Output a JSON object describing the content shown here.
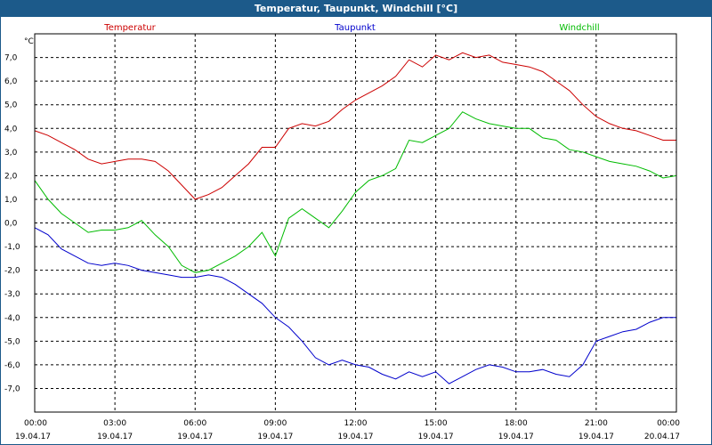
{
  "window": {
    "title": "Temperatur, Taupunkt, Windchill [°C]"
  },
  "chart_data": {
    "type": "line",
    "unit_label": "°C",
    "grid": true,
    "ylim": [
      -8,
      8
    ],
    "xlim": [
      0,
      24
    ],
    "y_ticks": [
      "7,0",
      "6,0",
      "5,0",
      "4,0",
      "3,0",
      "2,0",
      "1,0",
      "0,0",
      "-1,0",
      "-2,0",
      "-3,0",
      "-4,0",
      "-5,0",
      "-6,0",
      "-7,0"
    ],
    "y_tick_values": [
      7,
      6,
      5,
      4,
      3,
      2,
      1,
      0,
      -1,
      -2,
      -3,
      -4,
      -5,
      -6,
      -7
    ],
    "x_ticks": [
      {
        "time": "00:00",
        "date": "19.04.17"
      },
      {
        "time": "03:00",
        "date": "19.04.17"
      },
      {
        "time": "06:00",
        "date": "19.04.17"
      },
      {
        "time": "09:00",
        "date": "19.04.17"
      },
      {
        "time": "12:00",
        "date": "19.04.17"
      },
      {
        "time": "15:00",
        "date": "19.04.17"
      },
      {
        "time": "18:00",
        "date": "19.04.17"
      },
      {
        "time": "21:00",
        "date": "19.04.17"
      },
      {
        "time": "00:00",
        "date": "20.04.17"
      }
    ],
    "series": [
      {
        "name": "Temperatur",
        "color": "#cc0000",
        "points": [
          [
            0,
            3.9
          ],
          [
            0.5,
            3.7
          ],
          [
            1,
            3.4
          ],
          [
            1.5,
            3.1
          ],
          [
            2,
            2.7
          ],
          [
            2.5,
            2.5
          ],
          [
            3,
            2.6
          ],
          [
            3.5,
            2.7
          ],
          [
            4,
            2.7
          ],
          [
            4.5,
            2.6
          ],
          [
            5,
            2.2
          ],
          [
            5.5,
            1.6
          ],
          [
            6,
            1.0
          ],
          [
            6.5,
            1.2
          ],
          [
            7,
            1.5
          ],
          [
            7.5,
            2.0
          ],
          [
            8,
            2.5
          ],
          [
            8.5,
            3.2
          ],
          [
            9,
            3.2
          ],
          [
            9.5,
            4.0
          ],
          [
            10,
            4.2
          ],
          [
            10.5,
            4.1
          ],
          [
            11,
            4.3
          ],
          [
            11.5,
            4.8
          ],
          [
            12,
            5.2
          ],
          [
            12.5,
            5.5
          ],
          [
            13,
            5.8
          ],
          [
            13.5,
            6.2
          ],
          [
            14,
            6.9
          ],
          [
            14.5,
            6.6
          ],
          [
            15,
            7.1
          ],
          [
            15.5,
            6.9
          ],
          [
            16,
            7.2
          ],
          [
            16.5,
            7.0
          ],
          [
            17,
            7.1
          ],
          [
            17.5,
            6.8
          ],
          [
            18,
            6.7
          ],
          [
            18.5,
            6.6
          ],
          [
            19,
            6.4
          ],
          [
            19.5,
            6.0
          ],
          [
            20,
            5.6
          ],
          [
            20.5,
            5.0
          ],
          [
            21,
            4.5
          ],
          [
            21.5,
            4.2
          ],
          [
            22,
            4.0
          ],
          [
            22.5,
            3.9
          ],
          [
            23,
            3.7
          ],
          [
            23.5,
            3.5
          ],
          [
            24,
            3.5
          ]
        ]
      },
      {
        "name": "Taupunkt",
        "color": "#0000cc",
        "points": [
          [
            0,
            -0.2
          ],
          [
            0.5,
            -0.5
          ],
          [
            1,
            -1.1
          ],
          [
            1.5,
            -1.4
          ],
          [
            2,
            -1.7
          ],
          [
            2.5,
            -1.8
          ],
          [
            3,
            -1.7
          ],
          [
            3.5,
            -1.8
          ],
          [
            4,
            -2.0
          ],
          [
            4.5,
            -2.1
          ],
          [
            5,
            -2.2
          ],
          [
            5.5,
            -2.3
          ],
          [
            6,
            -2.3
          ],
          [
            6.5,
            -2.2
          ],
          [
            7,
            -2.3
          ],
          [
            7.5,
            -2.6
          ],
          [
            8,
            -3.0
          ],
          [
            8.5,
            -3.4
          ],
          [
            9,
            -4.0
          ],
          [
            9.5,
            -4.4
          ],
          [
            10,
            -5.0
          ],
          [
            10.5,
            -5.7
          ],
          [
            11,
            -6.0
          ],
          [
            11.5,
            -5.8
          ],
          [
            12,
            -6.0
          ],
          [
            12.5,
            -6.1
          ],
          [
            13,
            -6.4
          ],
          [
            13.5,
            -6.6
          ],
          [
            14,
            -6.3
          ],
          [
            14.5,
            -6.5
          ],
          [
            15,
            -6.3
          ],
          [
            15.5,
            -6.8
          ],
          [
            16,
            -6.5
          ],
          [
            16.5,
            -6.2
          ],
          [
            17,
            -6.0
          ],
          [
            17.5,
            -6.1
          ],
          [
            18,
            -6.3
          ],
          [
            18.5,
            -6.3
          ],
          [
            19,
            -6.2
          ],
          [
            19.5,
            -6.4
          ],
          [
            20,
            -6.5
          ],
          [
            20.5,
            -6.0
          ],
          [
            21,
            -5.0
          ],
          [
            21.5,
            -4.8
          ],
          [
            22,
            -4.6
          ],
          [
            22.5,
            -4.5
          ],
          [
            23,
            -4.2
          ],
          [
            23.5,
            -4.0
          ],
          [
            24,
            -4.0
          ]
        ]
      },
      {
        "name": "Windchill",
        "color": "#00bb00",
        "points": [
          [
            0,
            1.8
          ],
          [
            0.5,
            1.0
          ],
          [
            1,
            0.4
          ],
          [
            1.5,
            0.0
          ],
          [
            2,
            -0.4
          ],
          [
            2.5,
            -0.3
          ],
          [
            3,
            -0.3
          ],
          [
            3.5,
            -0.2
          ],
          [
            4,
            0.1
          ],
          [
            4.5,
            -0.5
          ],
          [
            5,
            -1.0
          ],
          [
            5.5,
            -1.8
          ],
          [
            6,
            -2.1
          ],
          [
            6.5,
            -2.0
          ],
          [
            7,
            -1.7
          ],
          [
            7.5,
            -1.4
          ],
          [
            8,
            -1.0
          ],
          [
            8.5,
            -0.4
          ],
          [
            9,
            -1.4
          ],
          [
            9.5,
            0.2
          ],
          [
            10,
            0.6
          ],
          [
            10.5,
            0.2
          ],
          [
            11,
            -0.2
          ],
          [
            11.5,
            0.5
          ],
          [
            12,
            1.3
          ],
          [
            12.5,
            1.8
          ],
          [
            13,
            2.0
          ],
          [
            13.5,
            2.3
          ],
          [
            14,
            3.5
          ],
          [
            14.5,
            3.4
          ],
          [
            15,
            3.7
          ],
          [
            15.5,
            4.0
          ],
          [
            16,
            4.7
          ],
          [
            16.5,
            4.4
          ],
          [
            17,
            4.2
          ],
          [
            17.5,
            4.1
          ],
          [
            18,
            4.0
          ],
          [
            18.5,
            4.0
          ],
          [
            19,
            3.6
          ],
          [
            19.5,
            3.5
          ],
          [
            20,
            3.1
          ],
          [
            20.5,
            3.0
          ],
          [
            21,
            2.8
          ],
          [
            21.5,
            2.6
          ],
          [
            22,
            2.5
          ],
          [
            22.5,
            2.4
          ],
          [
            23,
            2.2
          ],
          [
            23.5,
            1.9
          ],
          [
            24,
            2.0
          ]
        ]
      }
    ]
  }
}
